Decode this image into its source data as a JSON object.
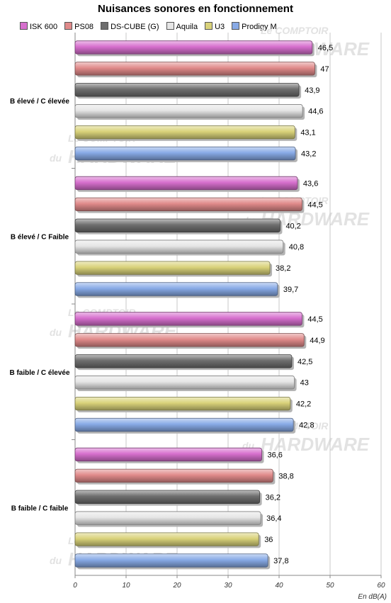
{
  "chart_data": {
    "type": "bar",
    "orientation": "horizontal",
    "title": "Nuisances sonores en fonctionnement",
    "xlabel": "En dB(A)",
    "xlim": [
      0,
      60
    ],
    "ticks": [
      "0",
      "10",
      "20",
      "30",
      "40",
      "50",
      "60"
    ],
    "grid": true,
    "legend_position": "top",
    "categories": [
      "B élevé / C élevée",
      "B élevé / C Faible",
      "B faible / C élevée",
      "B faible / C faible"
    ],
    "series": [
      {
        "name": "ISK 600",
        "color": "#d66fcd",
        "values": [
          46.5,
          43.6,
          44.5,
          36.6
        ],
        "labels": [
          "46,5",
          "43,6",
          "44,5",
          "36,6"
        ]
      },
      {
        "name": "PS08",
        "color": "#e08a8a",
        "values": [
          47,
          44.5,
          44.9,
          38.8
        ],
        "labels": [
          "47",
          "44,5",
          "44,9",
          "38,8"
        ]
      },
      {
        "name": "DS-CUBE (G)",
        "color": "#6e6e6e",
        "values": [
          43.9,
          40.2,
          42.5,
          36.2
        ],
        "labels": [
          "43,9",
          "40,2",
          "42,5",
          "36,2"
        ]
      },
      {
        "name": "Aquila",
        "color": "#e6e6e6",
        "values": [
          44.6,
          40.8,
          43,
          36.4
        ],
        "labels": [
          "44,6",
          "40,8",
          "43",
          "36,4"
        ]
      },
      {
        "name": "U3",
        "color": "#d9d27a",
        "values": [
          43.1,
          38.2,
          42.2,
          36
        ],
        "labels": [
          "43,1",
          "38,2",
          "42,2",
          "36"
        ]
      },
      {
        "name": "Prodigy M",
        "color": "#88aae6",
        "values": [
          43.2,
          39.7,
          42.8,
          37.8
        ],
        "labels": [
          "43,2",
          "39,7",
          "42,8",
          "37,8"
        ]
      }
    ]
  },
  "watermark": {
    "line1": "Le COMPTOIR",
    "line2": "du",
    "line3": "HARDWARE"
  }
}
